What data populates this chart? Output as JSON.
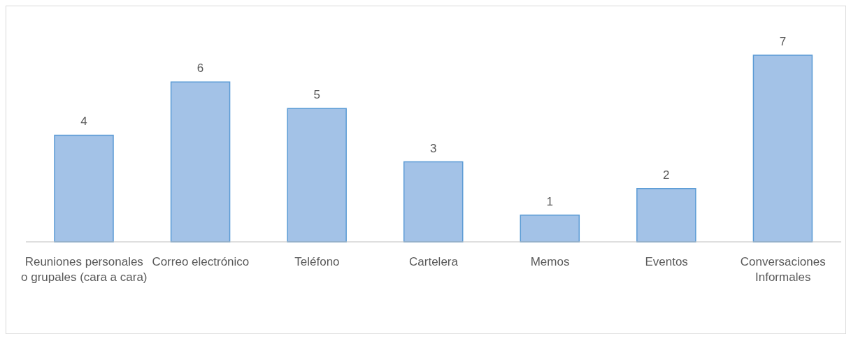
{
  "chart_data": {
    "type": "bar",
    "categories": [
      "Reuniones personales o grupales (cara a cara)",
      "Correo electrónico",
      "Teléfono",
      "Cartelera",
      "Memos",
      "Eventos",
      "Conversaciones Informales"
    ],
    "values": [
      4,
      6,
      5,
      3,
      1,
      2,
      7
    ],
    "color": "#a3c2e7",
    "data_labels": true,
    "grid": false,
    "legend": false
  }
}
